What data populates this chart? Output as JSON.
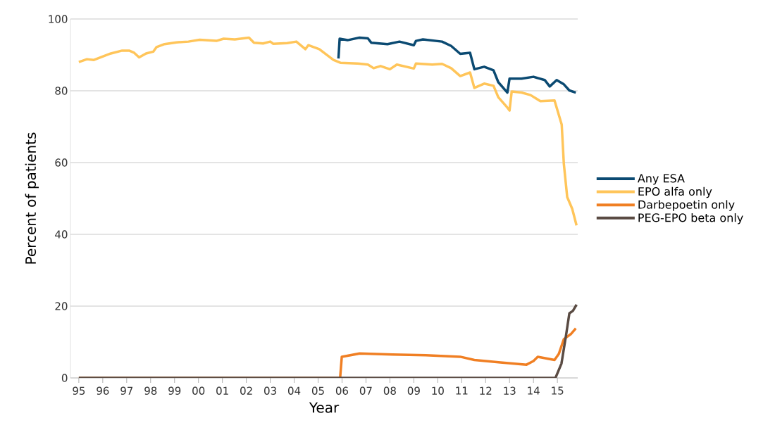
{
  "chart_data": {
    "type": "line",
    "xlabel": "Year",
    "ylabel": "Percent of patients",
    "xlim": [
      1994.65,
      2015.85
    ],
    "ylim": [
      0,
      100
    ],
    "xticks": [
      {
        "value": 1995,
        "label": "95"
      },
      {
        "value": 1996,
        "label": "96"
      },
      {
        "value": 1997,
        "label": "97"
      },
      {
        "value": 1998,
        "label": "98"
      },
      {
        "value": 1999,
        "label": "99"
      },
      {
        "value": 2000,
        "label": "00"
      },
      {
        "value": 2001,
        "label": "01"
      },
      {
        "value": 2002,
        "label": "02"
      },
      {
        "value": 2003,
        "label": "03"
      },
      {
        "value": 2004,
        "label": "04"
      },
      {
        "value": 2005,
        "label": "05"
      },
      {
        "value": 2006,
        "label": "06"
      },
      {
        "value": 2007,
        "label": "07"
      },
      {
        "value": 2008,
        "label": "08"
      },
      {
        "value": 2009,
        "label": "09"
      },
      {
        "value": 2010,
        "label": "10"
      },
      {
        "value": 2011,
        "label": "11"
      },
      {
        "value": 2012,
        "label": "12"
      },
      {
        "value": 2013,
        "label": "13"
      },
      {
        "value": 2014,
        "label": "14"
      },
      {
        "value": 2015,
        "label": "15"
      }
    ],
    "yticks": [
      0,
      20,
      40,
      60,
      80,
      100
    ],
    "grid": "y",
    "legend": "right",
    "series": [
      {
        "name": "Any ESA",
        "color": "#0b4a72",
        "x": [
          2005.85,
          2005.9,
          2006.23,
          2006.73,
          2007.08,
          2007.22,
          2007.9,
          2008.4,
          2009.0,
          2009.09,
          2009.38,
          2010.18,
          2010.56,
          2010.94,
          2011.35,
          2011.53,
          2011.94,
          2012.33,
          2012.53,
          2012.91,
          2013.0,
          2013.5,
          2014.0,
          2014.47,
          2014.68,
          2014.97,
          2015.27,
          2015.5,
          2015.77
        ],
        "values": [
          89.0,
          94.5,
          94.1,
          94.8,
          94.6,
          93.4,
          93.0,
          93.7,
          92.7,
          93.9,
          94.3,
          93.7,
          92.5,
          90.3,
          90.6,
          86.0,
          86.7,
          85.7,
          82.4,
          79.5,
          83.4,
          83.4,
          83.9,
          83.0,
          81.2,
          83.0,
          81.8,
          80.1,
          79.5
        ]
      },
      {
        "name": "EPO alfa only",
        "color": "#ffc55a",
        "x": [
          1995.0,
          1995.34,
          1995.63,
          1996.05,
          1996.34,
          1996.81,
          1997.1,
          1997.31,
          1997.52,
          1997.81,
          1998.11,
          1998.25,
          1998.58,
          1999.08,
          1999.58,
          2000.05,
          2000.75,
          2001.05,
          2001.52,
          2002.11,
          2002.32,
          2002.7,
          2003.0,
          2003.12,
          2003.71,
          2004.09,
          2004.47,
          2004.59,
          2005.05,
          2005.64,
          2005.93,
          2006.64,
          2007.08,
          2007.32,
          2007.61,
          2008.0,
          2008.29,
          2009.0,
          2009.09,
          2009.77,
          2010.18,
          2010.56,
          2010.94,
          2011.35,
          2011.53,
          2011.94,
          2012.33,
          2012.53,
          2012.91,
          2013.0,
          2013.09,
          2013.5,
          2013.88,
          2014.29,
          2014.88,
          2014.97,
          2015.18,
          2015.27,
          2015.41,
          2015.62,
          2015.8
        ],
        "values": [
          88.0,
          88.8,
          88.6,
          89.7,
          90.4,
          91.2,
          91.2,
          90.6,
          89.3,
          90.4,
          90.9,
          92.2,
          93.0,
          93.5,
          93.7,
          94.2,
          93.9,
          94.5,
          94.3,
          94.8,
          93.4,
          93.2,
          93.7,
          93.1,
          93.3,
          93.7,
          91.6,
          92.7,
          91.6,
          88.6,
          87.8,
          87.6,
          87.3,
          86.3,
          86.9,
          86.0,
          87.3,
          86.2,
          87.6,
          87.3,
          87.5,
          86.3,
          84.1,
          85.1,
          80.8,
          82.0,
          81.4,
          78.2,
          75.3,
          74.5,
          79.8,
          79.5,
          78.8,
          77.1,
          77.3,
          75.3,
          70.6,
          59.6,
          50.4,
          47.1,
          42.5
        ]
      },
      {
        "name": "Darbepoetin only",
        "color": "#f07f23",
        "x": [
          1995.0,
          2005.92,
          2005.99,
          2006.73,
          2008.11,
          2009.5,
          2010.94,
          2011.53,
          2012.62,
          2013.71,
          2014.0,
          2014.18,
          2014.88,
          2015.06,
          2015.27,
          2015.56,
          2015.77
        ],
        "values": [
          0,
          0,
          5.9,
          6.8,
          6.5,
          6.3,
          5.9,
          5.0,
          4.3,
          3.7,
          4.7,
          5.9,
          5.0,
          6.7,
          10.8,
          12.2,
          13.8
        ]
      },
      {
        "name": "PEG-EPO beta only",
        "color": "#5a4b43",
        "x": [
          1995.0,
          2014.92,
          2015.17,
          2015.36,
          2015.5,
          2015.65,
          2015.8
        ],
        "values": [
          0,
          0,
          4.0,
          11.8,
          18.0,
          18.7,
          20.4
        ]
      }
    ]
  }
}
